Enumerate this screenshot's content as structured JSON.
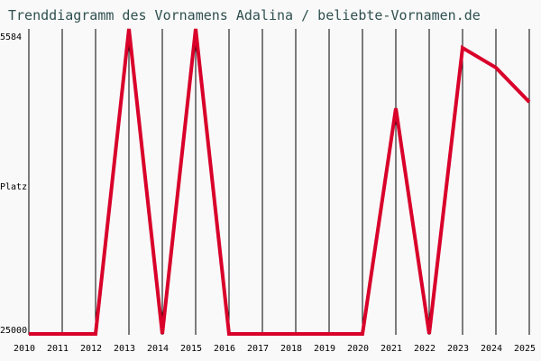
{
  "title": "Trenddiagramm des Vornamens Adalina / beliebte-Vornamen.de",
  "y_axis": {
    "top_label": "5584",
    "mid_label": "Platz",
    "bottom_label": "25000"
  },
  "colors": {
    "line": "#d9002a",
    "grid": "#000000",
    "title": "#2f4f4f",
    "background": "#f9f9f9"
  },
  "chart_data": {
    "type": "line",
    "title": "Trenddiagramm des Vornamens Adalina / beliebte-Vornamen.de",
    "xlabel": "",
    "ylabel": "Platz",
    "ylim": [
      25000,
      5584
    ],
    "y_inverted": true,
    "grid": "vertical",
    "categories": [
      "2010",
      "2011",
      "2012",
      "2013",
      "2014",
      "2015",
      "2016",
      "2017",
      "2018",
      "2019",
      "2020",
      "2021",
      "2022",
      "2023",
      "2024",
      "2025"
    ],
    "series": [
      {
        "name": "Adalina",
        "values": [
          25000,
          25000,
          25000,
          5584,
          25000,
          5584,
          25000,
          25000,
          25000,
          25000,
          25000,
          10640,
          25000,
          6790,
          8050,
          10240
        ]
      }
    ]
  }
}
